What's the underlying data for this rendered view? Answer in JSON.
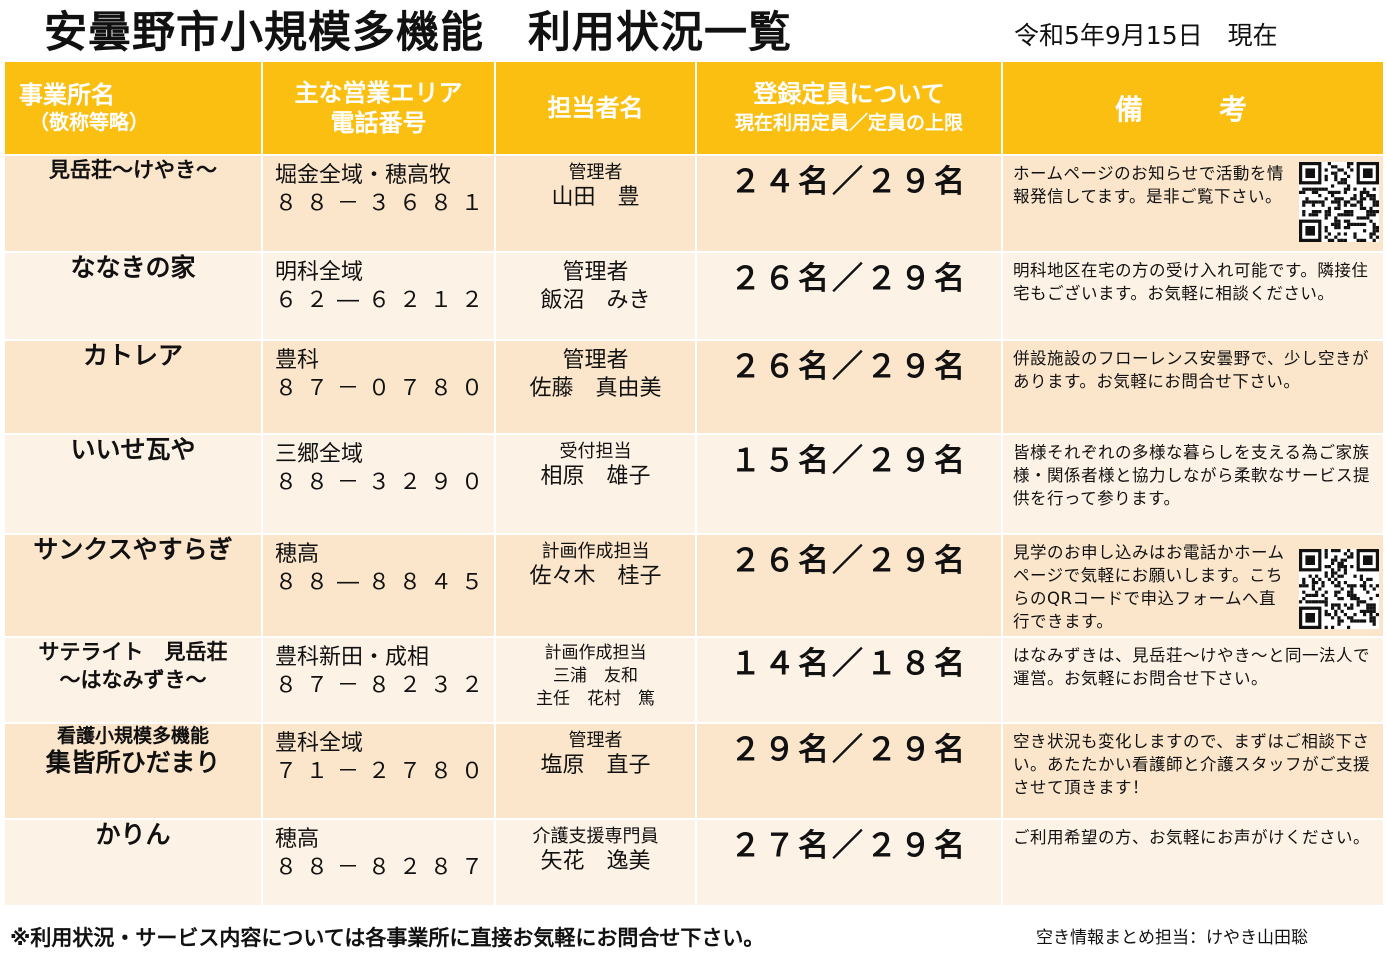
{
  "title": "安曇野市小規模多機能　利用状況一覧",
  "date": "令和5年9月15日　現在",
  "headers": {
    "office_name": "事業所名",
    "office_name_note": "（敬称等略）",
    "area_line1": "主な営業エリア",
    "area_line2": "電話番号",
    "staff": "担当者名",
    "capacity_line1": "登録定員について",
    "capacity_line2": "現在利用定員／定員の上限",
    "remarks": "備　考"
  },
  "rows": [
    {
      "name": "見岳荘～けやき～",
      "area": "堀金全域・穂高牧",
      "phone": "８８－３６８１",
      "role": "管理者",
      "person": "山田　豊",
      "capacity": "２４名／２９名",
      "note": "ホームページのお知らせで活動を情報発信してます。是非ご覧下さい。",
      "qr": "qr-code-icon"
    },
    {
      "name": "ななきの家",
      "area": "明科全域",
      "phone": "６２―６２１２",
      "role": "管理者",
      "person": "飯沼　みき",
      "capacity": "２６名／２９名",
      "note": "明科地区在宅の方の受け入れ可能です。隣接住宅もございます。お気軽に相談ください。"
    },
    {
      "name": "カトレア",
      "area": "豊科",
      "phone": "８７－０７８０",
      "role": "管理者",
      "person": "佐藤　真由美",
      "capacity": "２６名／２９名",
      "note": "併設施設のフローレンス安曇野で、少し空きがあります。お気軽にお問合せ下さい。"
    },
    {
      "name": "いいせ瓦や",
      "area": "三郷全域",
      "phone": "８８－３２９０",
      "role": "受付担当",
      "person": "相原　雄子",
      "capacity": "１５名／２９名",
      "note": "皆様それぞれの多様な暮らしを支える為ご家族様・関係者様と協力しながら柔軟なサービス提供を行って参ります。"
    },
    {
      "name": "サンクスやすらぎ",
      "area": "穂高",
      "phone": "８８―８８４５",
      "role": "計画作成担当",
      "person": "佐々木　桂子",
      "capacity": "２６名／２９名",
      "note": "見学のお申し込みはお電話かホームページで気軽にお願いします。こちらのQRコードで申込フォームへ直行できます。",
      "qr": "qr-code-icon"
    },
    {
      "name_line1": "サテライト　見岳荘",
      "name_line2": "～はなみずき～",
      "area": "豊科新田・成相",
      "phone": "８７－８２３２",
      "role": "計画作成担当",
      "person": "三浦　友和",
      "person2": "主任　花村　篤",
      "capacity": "１４名／１８名",
      "note": "はなみずきは、見岳荘～けやき～と同一法人で運営。お気軽にお問合せ下さい。"
    },
    {
      "name_line1": "看護小規模多機能",
      "name_line2": "集皆所ひだまり",
      "area": "豊科全域",
      "phone": "７１－２７８０",
      "role": "管理者",
      "person": "塩原　直子",
      "capacity": "２９名／２９名",
      "note": "空き状況も変化しますので、まずはご相談下さい。あたたかい看護師と介護スタッフがご支援させて頂きます！"
    },
    {
      "name": "かりん",
      "area": "穂高",
      "phone": "８８－８２８７",
      "role": "介護支援専門員",
      "person": "矢花　逸美",
      "capacity": "２７名／２９名",
      "note": "ご利用希望の方、お気軽にお声がけください。"
    }
  ],
  "footnote": "※利用状況・サービス内容については各事業所に直接お気軽にお問合せ下さい。",
  "contact": "空き情報まとめ担当：けやき山田聡",
  "colors": {
    "header_bg": "#fbbf12",
    "row_odd": "#fbe6cc",
    "row_even": "#fdf2e6"
  }
}
